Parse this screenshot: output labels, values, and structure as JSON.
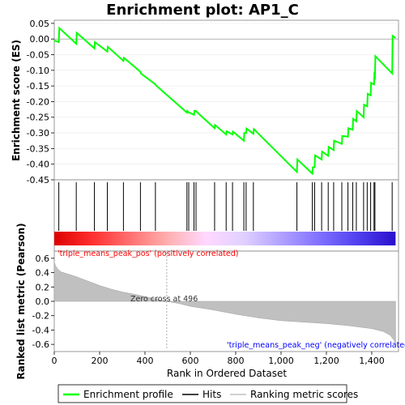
{
  "chart_data": {
    "type": "line",
    "title": "Enrichment plot: AP1_C",
    "xlabel": "Rank in Ordered Dataset",
    "x_ticks": [
      0,
      200,
      400,
      600,
      800,
      1000,
      1200,
      1400
    ],
    "x_tick_labels": [
      "0",
      "200",
      "400",
      "600",
      "800",
      "1,000",
      "1,200",
      "1,400"
    ],
    "xlim": [
      0,
      1518
    ],
    "top_panel": {
      "ylabel": "Enrichment score (ES)",
      "ylim": [
        -0.45,
        0.06
      ],
      "y_ticks": [
        0.05,
        0.0,
        -0.05,
        -0.1,
        -0.15,
        -0.2,
        -0.25,
        -0.3,
        -0.35,
        -0.4,
        -0.45
      ],
      "y_tick_labels": [
        "0.05",
        "0.00",
        "-0.05",
        "-0.10",
        "-0.15",
        "-0.20",
        "-0.25",
        "-0.30",
        "-0.35",
        "-0.40",
        "-0.45"
      ],
      "series": [
        {
          "name": "Enrichment profile",
          "color": "#00ff00",
          "x": [
            0,
            20,
            22,
            97,
            99,
            177,
            179,
            234,
            236,
            305,
            307,
            380,
            382,
            446,
            448,
            585,
            587,
            593,
            595,
            616,
            618,
            625,
            627,
            707,
            709,
            758,
            760,
            786,
            788,
            836,
            838,
            846,
            848,
            878,
            880,
            1070,
            1072,
            1138,
            1140,
            1148,
            1150,
            1179,
            1181,
            1208,
            1210,
            1232,
            1234,
            1268,
            1270,
            1295,
            1297,
            1316,
            1318,
            1332,
            1334,
            1364,
            1366,
            1380,
            1382,
            1395,
            1397,
            1410,
            1412,
            1414,
            1416,
            1490,
            1492,
            1505
          ],
          "y": [
            -0.005,
            -0.01,
            0.035,
            -0.015,
            0.02,
            -0.03,
            -0.01,
            -0.04,
            -0.025,
            -0.07,
            -0.06,
            -0.105,
            -0.11,
            -0.145,
            -0.148,
            -0.235,
            -0.23,
            -0.235,
            -0.235,
            -0.242,
            -0.23,
            -0.23,
            -0.232,
            -0.285,
            -0.275,
            -0.305,
            -0.295,
            -0.305,
            -0.296,
            -0.325,
            -0.3,
            -0.3,
            -0.286,
            -0.303,
            -0.288,
            -0.425,
            -0.385,
            -0.43,
            -0.41,
            -0.41,
            -0.372,
            -0.385,
            -0.36,
            -0.373,
            -0.345,
            -0.355,
            -0.325,
            -0.335,
            -0.31,
            -0.312,
            -0.285,
            -0.29,
            -0.255,
            -0.263,
            -0.23,
            -0.25,
            -0.21,
            -0.215,
            -0.175,
            -0.18,
            -0.14,
            -0.145,
            -0.105,
            -0.13,
            -0.055,
            -0.11,
            0.01,
            0.003
          ]
        }
      ]
    },
    "hits_panel": {
      "label": "Hits",
      "hit_ranks": [
        20,
        97,
        177,
        234,
        305,
        380,
        446,
        585,
        593,
        616,
        625,
        707,
        758,
        786,
        836,
        846,
        878,
        1070,
        1138,
        1148,
        1179,
        1208,
        1232,
        1268,
        1295,
        1316,
        1332,
        1364,
        1380,
        1395,
        1410,
        1414,
        1490
      ]
    },
    "bottom_panel": {
      "ylabel": "Ranked list metric (Pearson)",
      "ylim": [
        -0.7,
        0.7
      ],
      "y_ticks": [
        0.6,
        0.4,
        0.2,
        0.0,
        -0.2,
        -0.4,
        -0.6
      ],
      "y_tick_labels": [
        "0.6",
        "0.4",
        "0.2",
        "0.0",
        "-0.2",
        "-0.4",
        "-0.6"
      ],
      "series_name": "Ranking metric scores",
      "x": [
        0,
        5,
        15,
        30,
        60,
        100,
        150,
        200,
        250,
        300,
        350,
        400,
        450,
        496,
        550,
        600,
        700,
        800,
        900,
        1000,
        1100,
        1200,
        1300,
        1350,
        1400,
        1450,
        1480,
        1500,
        1505
      ],
      "y": [
        0.55,
        0.5,
        0.45,
        0.41,
        0.38,
        0.34,
        0.28,
        0.22,
        0.17,
        0.13,
        0.1,
        0.065,
        0.03,
        0.0,
        -0.03,
        -0.07,
        -0.12,
        -0.18,
        -0.23,
        -0.27,
        -0.29,
        -0.31,
        -0.34,
        -0.36,
        -0.38,
        -0.42,
        -0.47,
        -0.55,
        -0.62
      ],
      "zero_cross_label": "Zero cross at 496",
      "pos_label": "'triple_means_peak_pos' (positively correlated)",
      "neg_label": "'triple_means_peak_neg' (negatively correlated)",
      "pos_label_color": "#ff0000",
      "neg_label_color": "#0000ff"
    },
    "colorbar": {
      "stops": [
        "#dd0000",
        "#ff3030",
        "#ff7070",
        "#ffb0b0",
        "#ffd8ff",
        "#e0d0ff",
        "#b0a0ff",
        "#8070ff",
        "#5040ee",
        "#2a10cc"
      ]
    },
    "legend": {
      "position": "bottom",
      "items": [
        {
          "label": "Enrichment profile",
          "color": "#00ff00",
          "kind": "line"
        },
        {
          "label": "Hits",
          "color": "#000000",
          "kind": "line"
        },
        {
          "label": "Ranking metric scores",
          "color": "#c0c0c0",
          "kind": "line"
        }
      ]
    }
  }
}
